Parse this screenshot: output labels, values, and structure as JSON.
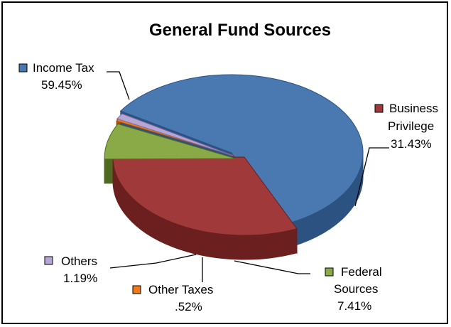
{
  "chart_data": {
    "type": "pie",
    "title": "General Fund Sources",
    "slices": [
      {
        "key": "income",
        "name": "Income Tax",
        "label_lines": [
          "Income Tax"
        ],
        "percent_label": "59.45%",
        "value": 59.45,
        "color": "#4a78b0",
        "side_color": "#2c5282",
        "legend": "left"
      },
      {
        "key": "business",
        "name": "Business Privilege",
        "label_lines": [
          "Business",
          "Privilege"
        ],
        "percent_label": "31.43%",
        "value": 31.43,
        "color": "#a03a3a",
        "side_color": "#6b1f1f",
        "legend": "right"
      },
      {
        "key": "federal",
        "name": "Federal Sources",
        "label_lines": [
          "Federal",
          "Sources"
        ],
        "percent_label": "7.41%",
        "value": 7.41,
        "color": "#8aaa48",
        "side_color": "#4f6a20",
        "legend": "bottom-right"
      },
      {
        "key": "othertaxes",
        "name": "Other Taxes",
        "label_lines": [
          "Other Taxes"
        ],
        "percent_label": ".52%",
        "value": 0.52,
        "color": "#f07a1a",
        "side_color": "#a84e06",
        "legend": "bottom"
      },
      {
        "key": "others",
        "name": "Others",
        "label_lines": [
          "Others"
        ],
        "percent_label": "1.19%",
        "value": 1.19,
        "color": "#b6a6d4",
        "side_color": "#7d6ca0",
        "legend": "bottom-left"
      }
    ]
  }
}
